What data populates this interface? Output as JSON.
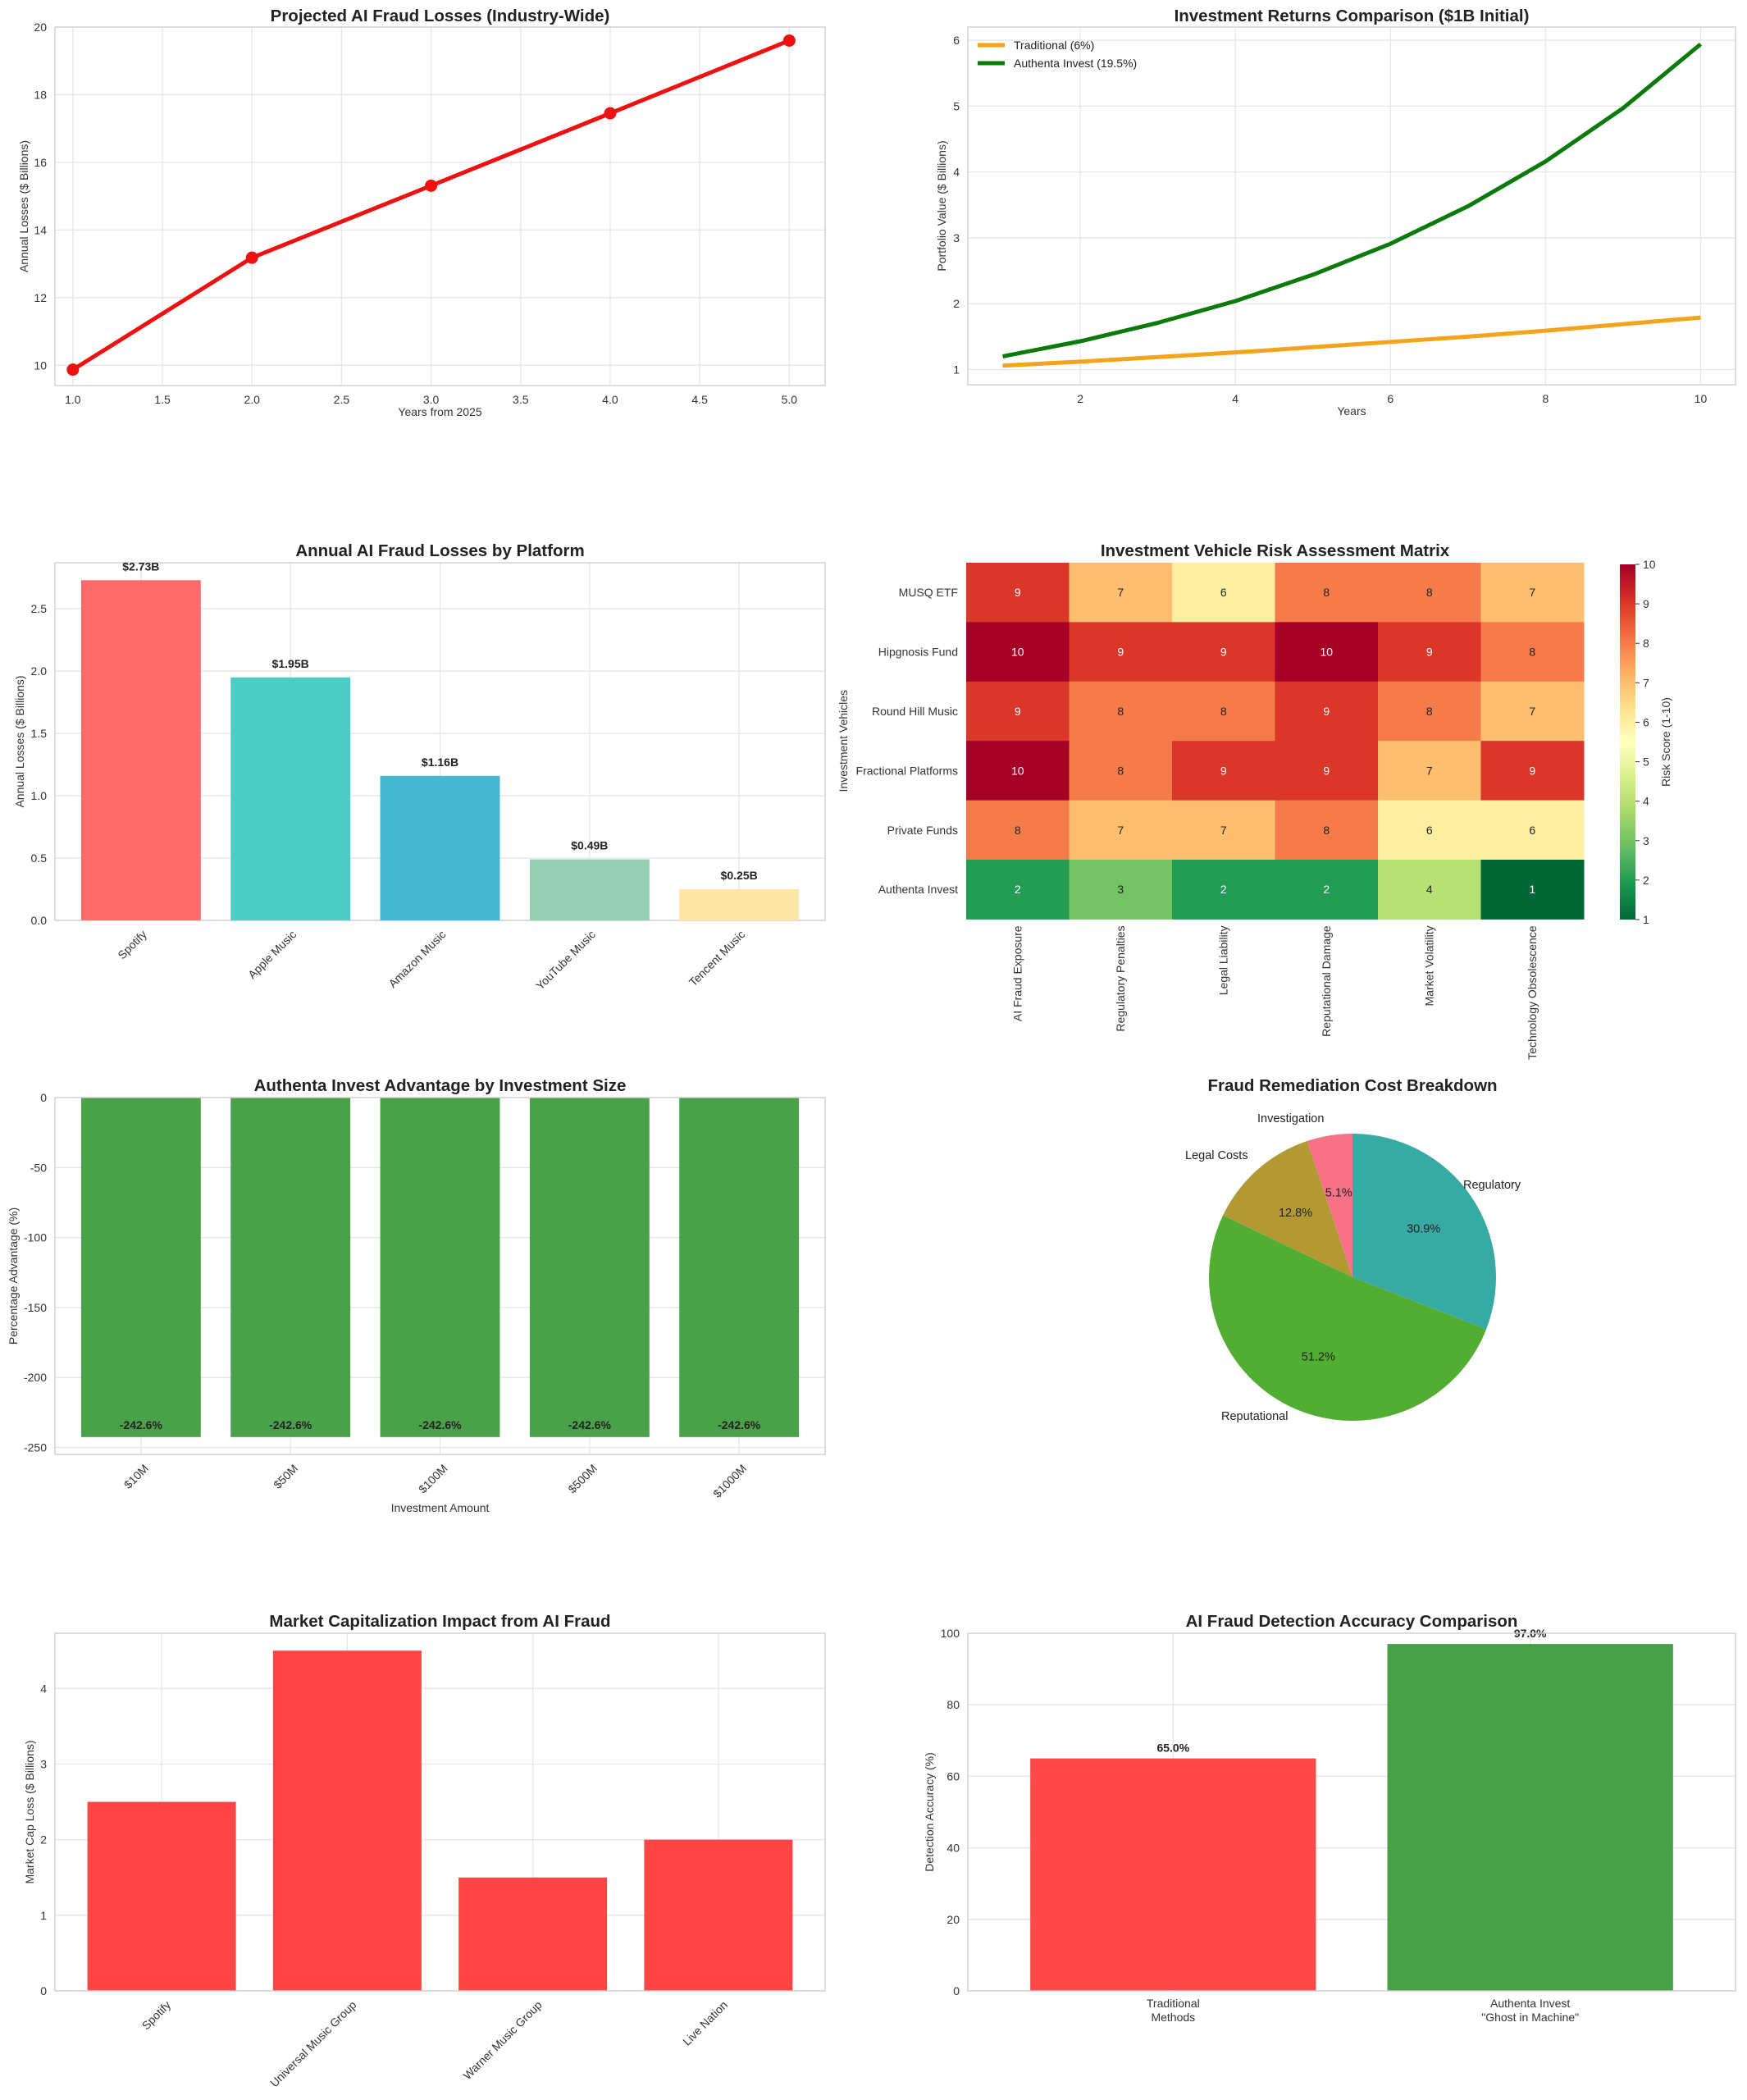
{
  "chart_data": [
    {
      "id": "c1",
      "type": "line",
      "title": "Projected AI Fraud Losses (Industry-Wide)",
      "xlabel": "Years from 2025",
      "ylabel": "Annual Losses ($ Billions)",
      "xlim": [
        0.9,
        5.2
      ],
      "ylim": [
        9.4,
        20
      ],
      "xticks": [
        "1.0",
        "1.5",
        "2.0",
        "2.5",
        "3.0",
        "3.5",
        "4.0",
        "4.5",
        "5.0"
      ],
      "xtick_values": [
        1,
        1.5,
        2,
        2.5,
        3,
        3.5,
        4,
        4.5,
        5
      ],
      "yticks": [
        10,
        12,
        14,
        16,
        18,
        20
      ],
      "grid": true,
      "color": "#ee1111",
      "x": [
        1,
        2,
        3,
        4,
        5
      ],
      "y": [
        9.87,
        13.18,
        15.31,
        17.45,
        19.6
      ]
    },
    {
      "id": "c2",
      "type": "line",
      "title": "Investment Returns Comparison ($1B Initial)",
      "xlabel": "Years",
      "ylabel": "Portfolio Value ($ Billions)",
      "xlim": [
        0.55,
        10.45
      ],
      "ylim": [
        0.77,
        6.2
      ],
      "xticks": [
        2,
        4,
        6,
        8,
        10
      ],
      "yticks": [
        1,
        2,
        3,
        4,
        5,
        6
      ],
      "grid": true,
      "legend_position": "top-left",
      "x": [
        1,
        2,
        3,
        4,
        5,
        6,
        7,
        8,
        9,
        10
      ],
      "series": [
        {
          "name": "Traditional (6%)",
          "color": "#f5a31a",
          "values": [
            1.06,
            1.12,
            1.19,
            1.26,
            1.34,
            1.42,
            1.5,
            1.59,
            1.69,
            1.79
          ]
        },
        {
          "name": "Authenta Invest (19.5%)",
          "color": "#0a7a0a",
          "values": [
            1.2,
            1.43,
            1.71,
            2.04,
            2.44,
            2.91,
            3.48,
            4.16,
            4.97,
            5.94
          ]
        }
      ]
    },
    {
      "id": "c3",
      "type": "bar",
      "title": "Annual AI Fraud Losses by Platform",
      "ylabel": "Annual Losses ($ Billions)",
      "ylim": [
        0,
        2.87
      ],
      "yticks": [
        "0.0",
        "0.5",
        "1.0",
        "1.5",
        "2.0",
        "2.5"
      ],
      "ytick_values": [
        0,
        0.5,
        1,
        1.5,
        2,
        2.5
      ],
      "grid": true,
      "categories": [
        "Spotify",
        "Apple Music",
        "Amazon Music",
        "YouTube Music",
        "Tencent Music"
      ],
      "values": [
        2.73,
        1.95,
        1.16,
        0.49,
        0.25
      ],
      "labels": [
        "$2.73B",
        "$1.95B",
        "$1.16B",
        "$0.49B",
        "$0.25B"
      ],
      "colors": [
        "#ff6b6b",
        "#4ecdc4",
        "#45b7d1",
        "#96ceb4",
        "#fde6a7"
      ]
    },
    {
      "id": "c4",
      "type": "heatmap",
      "title": "Investment Vehicle Risk Assessment Matrix",
      "ylabel": "Investment Vehicles",
      "colorbar_label": "Risk Score (1-10)",
      "colorbar_ticks": [
        1,
        2,
        3,
        4,
        5,
        6,
        7,
        8,
        9,
        10
      ],
      "colormap": "RdYlGn_r",
      "vmin": 1,
      "vmax": 10,
      "rows": [
        "MUSQ ETF",
        "Hipgnosis Fund",
        "Round Hill Music",
        "Fractional Platforms",
        "Private Funds",
        "Authenta Invest"
      ],
      "columns": [
        "AI Fraud Exposure",
        "Regulatory Penalties",
        "Legal Liability",
        "Reputational Damage",
        "Market Volatility",
        "Technology Obsolescence"
      ],
      "values": [
        [
          9,
          7,
          6,
          8,
          8,
          7
        ],
        [
          10,
          9,
          9,
          10,
          9,
          8
        ],
        [
          9,
          8,
          8,
          9,
          8,
          7
        ],
        [
          10,
          8,
          9,
          9,
          7,
          9
        ],
        [
          8,
          7,
          7,
          8,
          6,
          6
        ],
        [
          2,
          3,
          2,
          2,
          4,
          1
        ]
      ]
    },
    {
      "id": "c5",
      "type": "bar",
      "title": "Authenta Invest Advantage by Investment Size",
      "xlabel": "Investment Amount",
      "ylabel": "Percentage Advantage (%)",
      "ylim": [
        -255,
        0
      ],
      "yticks": [
        0,
        -50,
        -100,
        -150,
        -200,
        -250
      ],
      "grid": true,
      "color": "#3a9a3a",
      "categories": [
        "$10M",
        "$50M",
        "$100M",
        "$500M",
        "$1000M"
      ],
      "values": [
        -242.6,
        -242.6,
        -242.6,
        -242.6,
        -242.6
      ],
      "labels": [
        "-242.6%",
        "-242.6%",
        "-242.6%",
        "-242.6%",
        "-242.6%"
      ]
    },
    {
      "id": "c6",
      "type": "pie",
      "title": "Fraud Remediation Cost Breakdown",
      "slices": [
        {
          "label": "Regulatory",
          "value": 30.9,
          "pct": "30.9%",
          "color": "#37aba3"
        },
        {
          "label": "Reputational",
          "value": 51.2,
          "pct": "51.2%",
          "color": "#52ae32"
        },
        {
          "label": "Legal Costs",
          "value": 12.8,
          "pct": "12.8%",
          "color": "#b29934"
        },
        {
          "label": "Investigation",
          "value": 5.1,
          "pct": "5.1%",
          "color": "#f77189"
        }
      ]
    },
    {
      "id": "c7",
      "type": "bar",
      "title": "Market Capitalization Impact from AI Fraud",
      "ylabel": "Market Cap Loss ($ Billions)",
      "ylim": [
        0,
        4.73
      ],
      "yticks": [
        0,
        1,
        2,
        3,
        4
      ],
      "grid": true,
      "color": "#ff3b3b",
      "categories": [
        "Spotify",
        "Universal Music Group",
        "Warner Music Group",
        "Live Nation"
      ],
      "values": [
        2.5,
        4.5,
        1.5,
        2.0
      ]
    },
    {
      "id": "c8",
      "type": "bar",
      "title": "AI Fraud Detection Accuracy Comparison",
      "ylabel": "Detection Accuracy (%)",
      "ylim": [
        0,
        100
      ],
      "yticks": [
        0,
        20,
        40,
        60,
        80,
        100
      ],
      "grid": true,
      "categories": [
        [
          "Traditional",
          "Methods"
        ],
        [
          "Authenta Invest",
          "\"Ghost in Machine\""
        ]
      ],
      "values": [
        65.0,
        97.0
      ],
      "labels": [
        "65.0%",
        "97.0%"
      ],
      "colors": [
        "#ff3b3b",
        "#3a9a3a"
      ]
    }
  ]
}
